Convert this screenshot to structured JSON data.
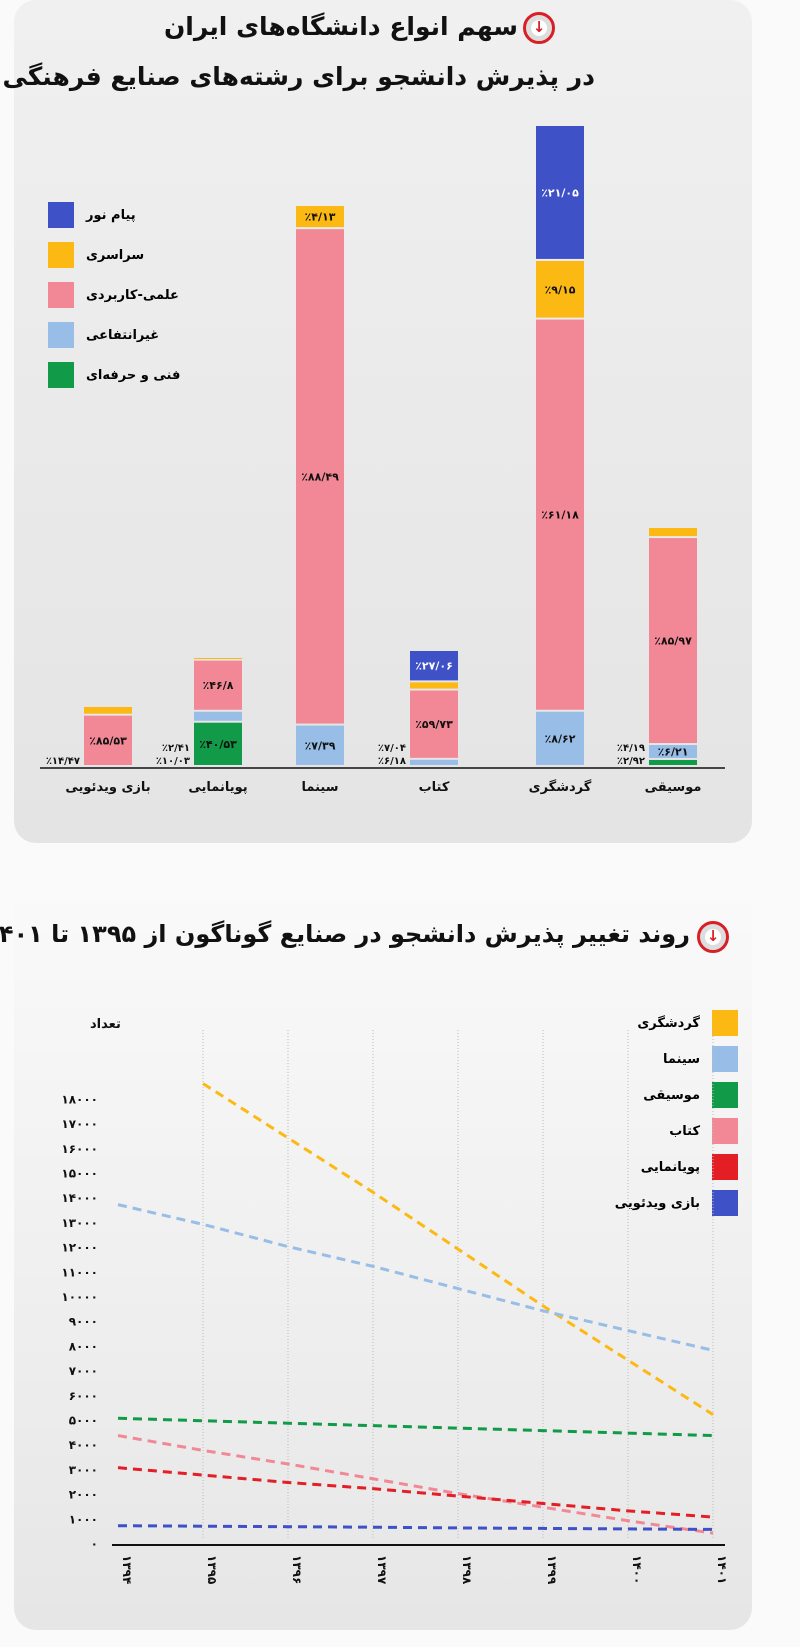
{
  "bar_section": {
    "title_line1": "سهم انواع دانشگاه‌های ایران",
    "title_line2": "در پذیرش دانشجو برای رشته‌های صنایع فرهنگی",
    "icon": "arrow-down-circle-icon"
  },
  "line_section": {
    "title": "روند تغییر پذیرش دانشجو در صنایع گوناگون از ۱۳۹۵ تا ۱۴۰۱",
    "icon": "arrow-down-circle-icon"
  },
  "chart_data": [
    {
      "type": "bar",
      "stacked": true,
      "categories": [
        "بازی ویدئویی",
        "پویانمایی",
        "سینما",
        "کتاب",
        "گردشگری",
        "موسیقی"
      ],
      "legend_placement": "top-left",
      "series": [
        {
          "name": "فنی و حرفه‌ای",
          "color": "#119a47",
          "values": [
            null,
            40.53,
            null,
            null,
            null,
            2.92
          ],
          "labels": [
            "",
            "٪۴۰/۵۳",
            "",
            "",
            "",
            "٪۲/۹۲"
          ]
        },
        {
          "name": "غیرانتفاعی",
          "color": "#98bde6",
          "values": [
            null,
            10.03,
            7.39,
            6.18,
            8.62,
            6.21
          ],
          "labels": [
            "",
            "٪۱۰/۰۳",
            "٪۷/۳۹",
            "٪۶/۱۸",
            "٪۸/۶۲",
            "٪۶/۲۱"
          ]
        },
        {
          "name": "علمی-کاربردی",
          "color": "#f28896",
          "values": [
            85.53,
            46.8,
            88.49,
            59.73,
            61.18,
            85.97
          ],
          "labels": [
            "٪۸۵/۵۳",
            "٪۴۶/۸",
            "٪۸۸/۴۹",
            "٪۵۹/۷۳",
            "٪۶۱/۱۸",
            "٪۸۵/۹۷"
          ]
        },
        {
          "name": "سراسری",
          "color": "#fdb913",
          "values": [
            14.47,
            2.41,
            4.13,
            7.04,
            9.15,
            4.19
          ],
          "labels": [
            "٪۱۴/۴۷",
            "٪۲/۴۱",
            "٪۴/۱۳",
            "٪۷/۰۴",
            "٪۹/۱۵",
            "٪۴/۱۹"
          ]
        },
        {
          "name": "پیام نور",
          "color": "#3f51c6",
          "values": [
            null,
            null,
            null,
            27.06,
            21.05,
            null
          ],
          "labels": [
            "",
            "",
            "",
            "٪۲۷/۰۶",
            "٪۲۱/۰۵",
            ""
          ]
        }
      ]
    },
    {
      "type": "line",
      "x": [
        1394,
        1395,
        1396,
        1397,
        1398,
        1399,
        1400,
        1401
      ],
      "x_tick_labels": [
        "۱۳۹۴",
        "۱۳۹۵",
        "۱۳۹۶",
        "۱۳۹۷",
        "۱۳۹۸",
        "۱۳۹۹",
        "۱۴۰۰",
        "۱۴۰۱"
      ],
      "ylabel": "تعداد",
      "ylim": [
        0,
        18000
      ],
      "y_ticks": [
        0,
        1000,
        2000,
        3000,
        4000,
        5000,
        6000,
        7000,
        8000,
        9000,
        10000,
        11000,
        12000,
        13000,
        14000,
        15000,
        16000,
        17000,
        18000
      ],
      "y_tick_labels": [
        "۰",
        "۱۰۰۰",
        "۲۰۰۰",
        "۳۰۰۰",
        "۴۰۰۰",
        "۵۰۰۰",
        "۶۰۰۰",
        "۷۰۰۰",
        "۸۰۰۰",
        "۹۰۰۰",
        "۱۰۰۰۰",
        "۱۱۰۰۰",
        "۱۲۰۰۰",
        "۱۳۰۰۰",
        "۱۴۰۰۰",
        "۱۵۰۰۰",
        "۱۶۰۰۰",
        "۱۷۰۰۰",
        "۱۸۰۰۰"
      ],
      "grid": "vertical-dotted",
      "line_style": "dashed",
      "legend_placement": "top-right",
      "series": [
        {
          "name": "گردشگری",
          "color": "#fdb913",
          "values": [
            null,
            18600,
            16400,
            14200,
            11900,
            9600,
            7400,
            5200
          ]
        },
        {
          "name": "سینما",
          "color": "#98bde6",
          "values": [
            13700,
            12900,
            12000,
            11200,
            10300,
            9400,
            8600,
            7800
          ]
        },
        {
          "name": "موسیقی",
          "color": "#119a47",
          "values": [
            5050,
            4950,
            4850,
            4750,
            4650,
            4550,
            4450,
            4350
          ]
        },
        {
          "name": "کتاب",
          "color": "#f28896",
          "values": [
            4350,
            3750,
            3200,
            2600,
            2000,
            1450,
            900,
            400
          ]
        },
        {
          "name": "پویانمایی",
          "color": "#e31e25",
          "values": [
            3050,
            2750,
            2450,
            2200,
            1900,
            1600,
            1300,
            1050
          ]
        },
        {
          "name": "بازی ویدئویی",
          "color": "#3f51c6",
          "values": [
            700,
            680,
            660,
            640,
            610,
            590,
            570,
            550
          ]
        }
      ]
    }
  ]
}
